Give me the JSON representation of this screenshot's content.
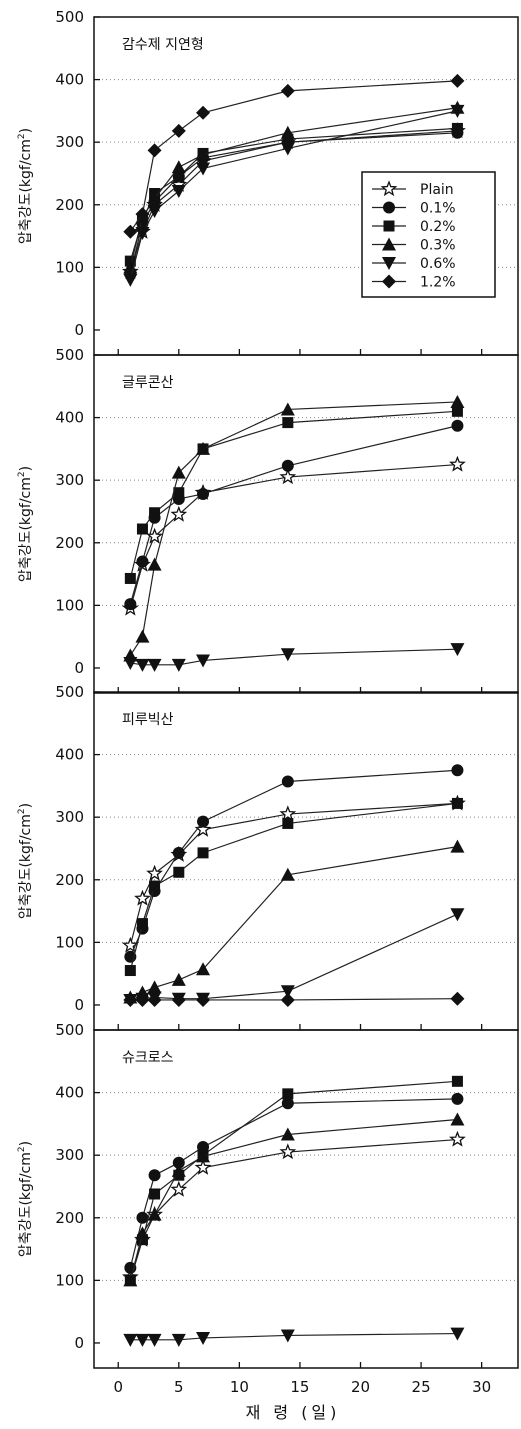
{
  "chart_data": {
    "type": "line",
    "xlabel": "재 령 (일)",
    "ylabel_main": "압축강도(kgf/cm",
    "ylabel_sup": "2",
    "ylabel_close": ")",
    "xlim": [
      -2,
      33
    ],
    "ylim": [
      -40,
      500
    ],
    "x_ticks": [
      0,
      5,
      10,
      15,
      20,
      25,
      30
    ],
    "y_ticks": [
      0,
      100,
      200,
      300,
      400,
      500
    ],
    "grid": "horizontal dotted",
    "legend_position": "top-right of first panel",
    "legend": [
      {
        "label": "Plain",
        "marker": "star-open"
      },
      {
        "label": "0.1%",
        "marker": "circle"
      },
      {
        "label": "0.2%",
        "marker": "square"
      },
      {
        "label": "0.3%",
        "marker": "triangle-up"
      },
      {
        "label": "0.6%",
        "marker": "triangle-down"
      },
      {
        "label": "1.2%",
        "marker": "diamond"
      }
    ],
    "panels": [
      {
        "title": "감수제 지연형",
        "series": [
          {
            "marker": "star-open",
            "x": [
              1,
              2,
              3,
              5,
              7,
              14,
              28
            ],
            "y": [
              93,
              157,
              200,
              232,
              270,
              300,
              318
            ]
          },
          {
            "marker": "circle",
            "x": [
              1,
              2,
              3,
              5,
              7,
              14,
              28
            ],
            "y": [
              90,
              170,
              205,
              245,
              275,
              300,
              315
            ]
          },
          {
            "marker": "square",
            "x": [
              1,
              2,
              3,
              5,
              7,
              14,
              28
            ],
            "y": [
              110,
              175,
              218,
              245,
              282,
              305,
              322
            ]
          },
          {
            "marker": "triangle-up",
            "x": [
              1,
              2,
              3,
              5,
              7,
              14,
              28
            ],
            "y": [
              100,
              180,
              210,
              260,
              280,
              315,
              355
            ]
          },
          {
            "marker": "triangle-down",
            "x": [
              1,
              2,
              3,
              5,
              7,
              14,
              28
            ],
            "y": [
              80,
              155,
              190,
              222,
              258,
              290,
              350
            ]
          },
          {
            "marker": "diamond",
            "x": [
              1,
              2,
              3,
              5,
              7,
              14,
              28
            ],
            "y": [
              157,
              185,
              287,
              318,
              347,
              382,
              398
            ]
          }
        ]
      },
      {
        "title": "글루콘산",
        "series": [
          {
            "marker": "star-open",
            "x": [
              1,
              2,
              3,
              5,
              7,
              14,
              28
            ],
            "y": [
              95,
              165,
              210,
              245,
              280,
              305,
              325
            ]
          },
          {
            "marker": "circle",
            "x": [
              1,
              2,
              3,
              5,
              7,
              14,
              28
            ],
            "y": [
              102,
              170,
              240,
              270,
              278,
              323,
              387
            ]
          },
          {
            "marker": "square",
            "x": [
              1,
              2,
              3,
              5,
              7,
              14,
              28
            ],
            "y": [
              143,
              222,
              248,
              280,
              350,
              392,
              410
            ]
          },
          {
            "marker": "triangle-up",
            "x": [
              1,
              2,
              3,
              5,
              7,
              14,
              28
            ],
            "y": [
              20,
              50,
              165,
              312,
              350,
              413,
              425
            ]
          },
          {
            "marker": "triangle-down",
            "x": [
              1,
              2,
              3,
              5,
              7,
              14,
              28
            ],
            "y": [
              8,
              5,
              5,
              5,
              12,
              22,
              30
            ]
          }
        ]
      },
      {
        "title": "피루빅산",
        "series": [
          {
            "marker": "star-open",
            "x": [
              1,
              2,
              3,
              5,
              7,
              14,
              28
            ],
            "y": [
              95,
              170,
              210,
              240,
              280,
              305,
              322
            ]
          },
          {
            "marker": "circle",
            "x": [
              1,
              2,
              3,
              5,
              7,
              14,
              28
            ],
            "y": [
              77,
              122,
              182,
              243,
              293,
              357,
              375
            ]
          },
          {
            "marker": "square",
            "x": [
              1,
              2,
              3,
              5,
              7,
              14,
              28
            ],
            "y": [
              55,
              130,
              190,
              212,
              243,
              290,
              322
            ]
          },
          {
            "marker": "triangle-up",
            "x": [
              1,
              2,
              3,
              5,
              7,
              14,
              28
            ],
            "y": [
              12,
              20,
              28,
              40,
              57,
              208,
              253
            ]
          },
          {
            "marker": "triangle-down",
            "x": [
              1,
              2,
              3,
              5,
              7,
              14,
              28
            ],
            "y": [
              8,
              10,
              12,
              10,
              10,
              22,
              145
            ]
          },
          {
            "marker": "diamond",
            "x": [
              1,
              2,
              3,
              5,
              7,
              14,
              28
            ],
            "y": [
              8,
              8,
              8,
              8,
              8,
              8,
              10
            ]
          }
        ]
      },
      {
        "title": "슈크로스",
        "series": [
          {
            "marker": "star-open",
            "x": [
              1,
              2,
              3,
              5,
              7,
              14,
              28
            ],
            "y": [
              105,
              165,
              205,
              245,
              280,
              305,
              325
            ]
          },
          {
            "marker": "circle",
            "x": [
              1,
              2,
              3,
              5,
              7,
              14,
              28
            ],
            "y": [
              120,
              200,
              268,
              288,
              313,
              383,
              390
            ]
          },
          {
            "marker": "square",
            "x": [
              1,
              2,
              3,
              5,
              7,
              14,
              28
            ],
            "y": [
              100,
              165,
              238,
              268,
              300,
              398,
              418
            ]
          },
          {
            "marker": "triangle-up",
            "x": [
              1,
              2,
              3,
              5,
              7,
              14,
              28
            ],
            "y": [
              100,
              175,
              205,
              275,
              298,
              333,
              357
            ]
          },
          {
            "marker": "triangle-down",
            "x": [
              1,
              2,
              3,
              5,
              7,
              14,
              28
            ],
            "y": [
              5,
              5,
              5,
              5,
              8,
              12,
              15
            ]
          }
        ]
      }
    ]
  }
}
